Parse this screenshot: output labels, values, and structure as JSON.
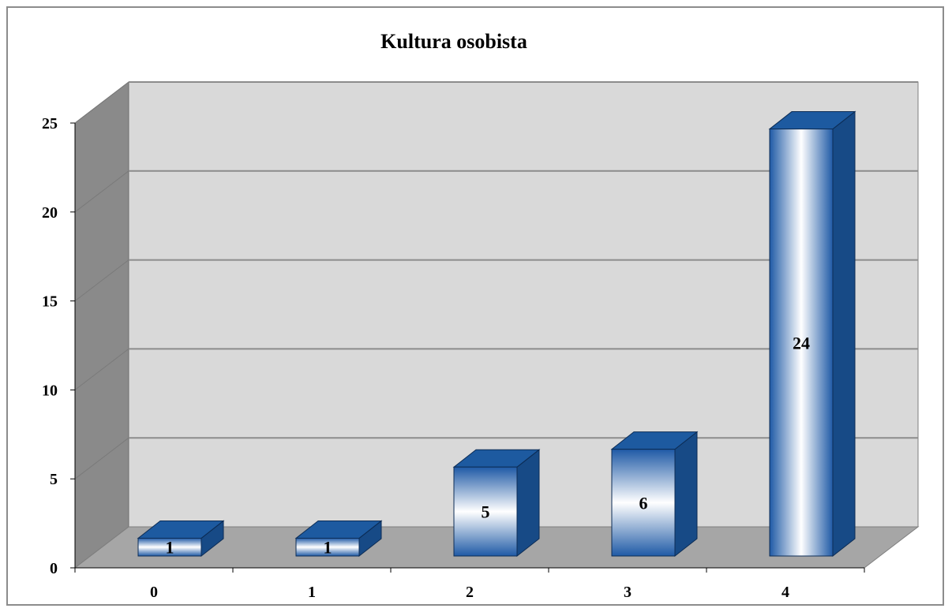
{
  "chart_data": {
    "type": "bar",
    "title": "Kultura osobista",
    "categories": [
      "0",
      "1",
      "2",
      "3",
      "4"
    ],
    "values": [
      1,
      1,
      5,
      6,
      24
    ],
    "data_labels": [
      "1",
      "1",
      "5",
      "6",
      "24"
    ],
    "y_ticks": [
      "0",
      "5",
      "10",
      "15",
      "20",
      "25"
    ],
    "ylim": [
      0,
      25
    ],
    "xlabel": "",
    "ylabel": "",
    "grid": true,
    "legend": "none",
    "three_d": true
  },
  "colors": {
    "bar_front_edge": "#1f5aa6",
    "bar_front_center": "#ffffff",
    "bar_side": "#174a86",
    "bar_top": "#1d5aa0",
    "back_wall": "#d9d9d9",
    "side_wall": "#8a8a8a",
    "floor": "#a6a6a6",
    "grid": "#8c8c8c"
  }
}
